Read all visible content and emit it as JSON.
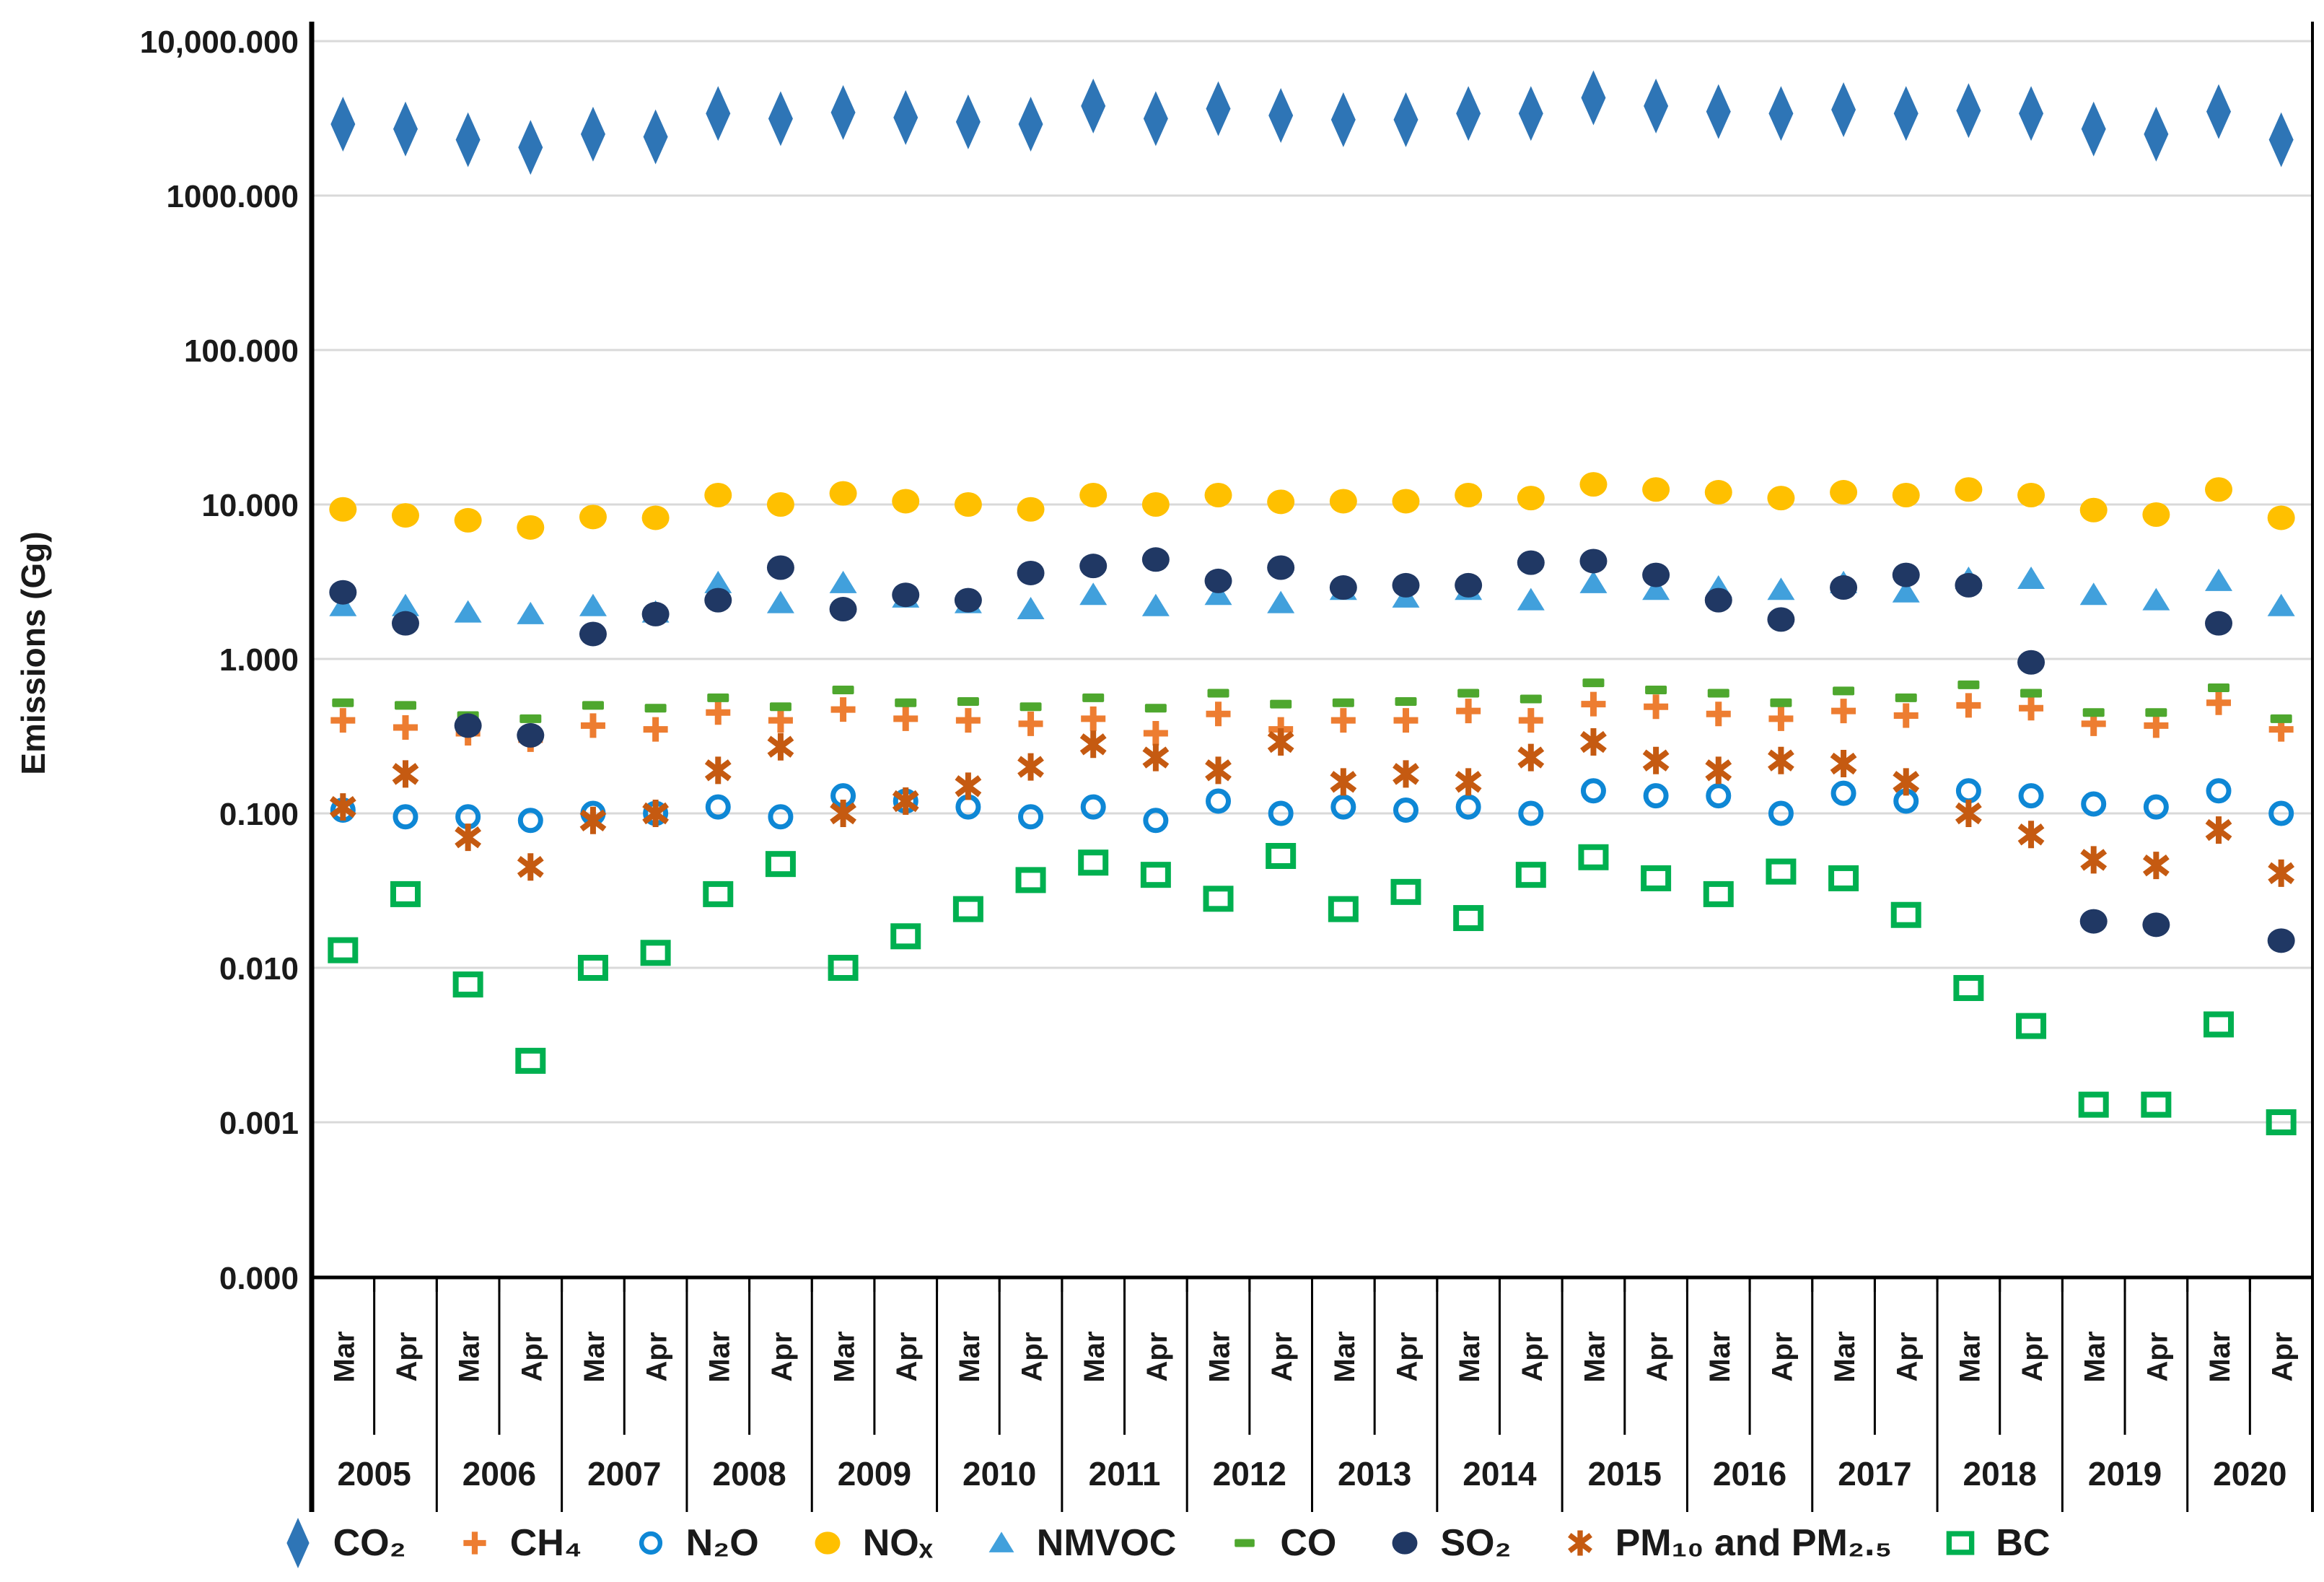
{
  "chart_data": {
    "type": "scatter",
    "title": "",
    "ylabel": "Emissions (Gg)",
    "xlabel": "",
    "y_scale": "log",
    "ylim": [
      0.001,
      10000
    ],
    "grid": "horizontal-decades",
    "legend_position": "bottom",
    "y_tick_labels": [
      "10,000.000",
      "1000.000",
      "100.000",
      "10.000",
      "1.000",
      "0.100",
      "0.010",
      "0.001",
      "0.000"
    ],
    "years": [
      "2005",
      "2006",
      "2007",
      "2008",
      "2009",
      "2010",
      "2011",
      "2012",
      "2013",
      "2014",
      "2015",
      "2016",
      "2017",
      "2018",
      "2019",
      "2020"
    ],
    "months": [
      "Mar",
      "Apr"
    ],
    "series": [
      {
        "name": "CO₂",
        "marker": "diamond",
        "color": "#2E75B6",
        "values": [
          2900,
          2700,
          2300,
          2050,
          2500,
          2400,
          3400,
          3150,
          3450,
          3200,
          3000,
          2900,
          3800,
          3150,
          3650,
          3300,
          3100,
          3100,
          3400,
          3400,
          4300,
          3800,
          3500,
          3400,
          3600,
          3400,
          3550,
          3400,
          2700,
          2500,
          3500,
          2300
        ]
      },
      {
        "name": "CH₄",
        "marker": "plus",
        "color": "#ED7D31",
        "values": [
          0.4,
          0.36,
          0.33,
          0.3,
          0.37,
          0.35,
          0.45,
          0.4,
          0.47,
          0.41,
          0.4,
          0.38,
          0.41,
          0.33,
          0.44,
          0.35,
          0.4,
          0.4,
          0.46,
          0.4,
          0.51,
          0.49,
          0.44,
          0.41,
          0.46,
          0.43,
          0.5,
          0.48,
          0.38,
          0.37,
          0.52,
          0.35
        ]
      },
      {
        "name": "N₂O",
        "marker": "circle-open",
        "color": "#0E87D5",
        "values": [
          0.105,
          0.095,
          0.095,
          0.09,
          0.1,
          0.1,
          0.11,
          0.095,
          0.13,
          0.12,
          0.11,
          0.095,
          0.11,
          0.09,
          0.12,
          0.1,
          0.11,
          0.105,
          0.11,
          0.1,
          0.14,
          0.13,
          0.13,
          0.1,
          0.135,
          0.12,
          0.14,
          0.13,
          0.115,
          0.11,
          0.14,
          0.1
        ]
      },
      {
        "name": "NOₓ",
        "marker": "circle",
        "color": "#FFC000",
        "values": [
          9.3,
          8.5,
          7.9,
          7.1,
          8.3,
          8.2,
          11.5,
          10,
          11.8,
          10.5,
          10,
          9.3,
          11.5,
          10,
          11.5,
          10.4,
          10.5,
          10.5,
          11.5,
          11,
          13.5,
          12.5,
          12,
          11,
          12,
          11.5,
          12.5,
          11.5,
          9.2,
          8.6,
          12.5,
          8.2
        ]
      },
      {
        "name": "NMVOC",
        "marker": "triangle",
        "color": "#41A0DC",
        "values": [
          2.2,
          2.2,
          2.0,
          1.95,
          2.2,
          2.0,
          3.1,
          2.3,
          3.1,
          2.5,
          2.3,
          2.1,
          2.6,
          2.2,
          2.6,
          2.3,
          2.8,
          2.5,
          2.8,
          2.4,
          3.1,
          2.8,
          2.9,
          2.8,
          3.1,
          2.7,
          3.3,
          3.3,
          2.6,
          2.4,
          3.2,
          2.2
        ]
      },
      {
        "name": "CO",
        "marker": "dash",
        "color": "#4EA72E",
        "values": [
          0.52,
          0.5,
          0.43,
          0.41,
          0.5,
          0.48,
          0.56,
          0.49,
          0.63,
          0.52,
          0.53,
          0.49,
          0.56,
          0.48,
          0.6,
          0.51,
          0.52,
          0.53,
          0.6,
          0.55,
          0.7,
          0.63,
          0.6,
          0.52,
          0.62,
          0.56,
          0.68,
          0.6,
          0.45,
          0.45,
          0.65,
          0.41
        ]
      },
      {
        "name": "SO₂",
        "marker": "circle",
        "color": "#203864",
        "values": [
          2.7,
          1.7,
          0.37,
          0.32,
          1.45,
          1.95,
          2.4,
          3.9,
          2.1,
          2.6,
          2.4,
          3.6,
          4.0,
          4.4,
          3.2,
          3.9,
          2.9,
          3.0,
          3.0,
          4.2,
          4.3,
          3.5,
          2.4,
          1.8,
          2.9,
          3.5,
          3.0,
          0.95,
          0.02,
          0.019,
          1.7,
          0.015
        ]
      },
      {
        "name": "PM₁₀ and PM₂.₅",
        "marker": "star6",
        "color": "#C55A11",
        "values": [
          0.11,
          0.18,
          0.07,
          0.045,
          0.09,
          0.1,
          0.19,
          0.27,
          0.1,
          0.12,
          0.15,
          0.2,
          0.28,
          0.23,
          0.19,
          0.29,
          0.16,
          0.18,
          0.16,
          0.23,
          0.29,
          0.22,
          0.19,
          0.22,
          0.21,
          0.16,
          0.1,
          0.073,
          0.05,
          0.046,
          0.078,
          0.041
        ]
      },
      {
        "name": "BC",
        "marker": "square-open",
        "color": "#00B050",
        "values": [
          0.013,
          0.03,
          0.0078,
          0.0025,
          0.01,
          0.0125,
          0.03,
          0.047,
          0.01,
          0.016,
          0.024,
          0.037,
          0.048,
          0.04,
          0.028,
          0.053,
          0.024,
          0.031,
          0.021,
          0.04,
          0.052,
          0.038,
          0.03,
          0.042,
          0.038,
          0.022,
          0.0074,
          0.0042,
          0.0013,
          0.0013,
          0.0043,
          0.001
        ]
      }
    ]
  }
}
